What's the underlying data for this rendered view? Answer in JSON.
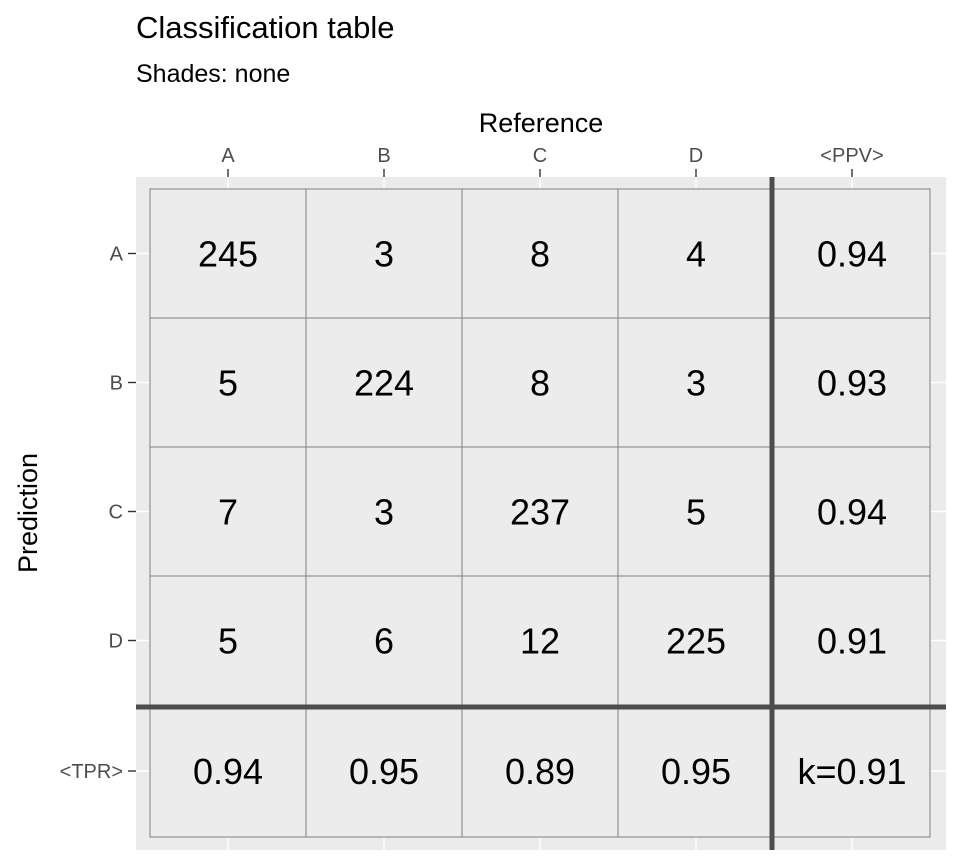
{
  "title": "Classification table",
  "subtitle": "Shades: none",
  "chart_data": {
    "type": "table",
    "xlabel": "Reference",
    "ylabel": "Prediction",
    "x_ticks": [
      "A",
      "B",
      "C",
      "D",
      "<PPV>"
    ],
    "y_ticks": [
      "A",
      "B",
      "C",
      "D",
      "<TPR>"
    ],
    "categories": [
      "A",
      "B",
      "C",
      "D"
    ],
    "matrix": [
      [
        245,
        3,
        8,
        4
      ],
      [
        5,
        224,
        8,
        3
      ],
      [
        7,
        3,
        237,
        5
      ],
      [
        5,
        6,
        12,
        225
      ]
    ],
    "ppv": [
      "0.94",
      "0.93",
      "0.94",
      "0.91"
    ],
    "tpr": [
      "0.94",
      "0.95",
      "0.89",
      "0.95"
    ],
    "kappa": "k=0.91",
    "grid": true,
    "colors": {
      "panel_background": "#ebebeb",
      "cell_fill": "#ececec",
      "cell_border": "#7f7f7f",
      "separator": "#4d4d4d",
      "gridline": "#ffffff",
      "tick_text": "#4d4d4d"
    }
  }
}
